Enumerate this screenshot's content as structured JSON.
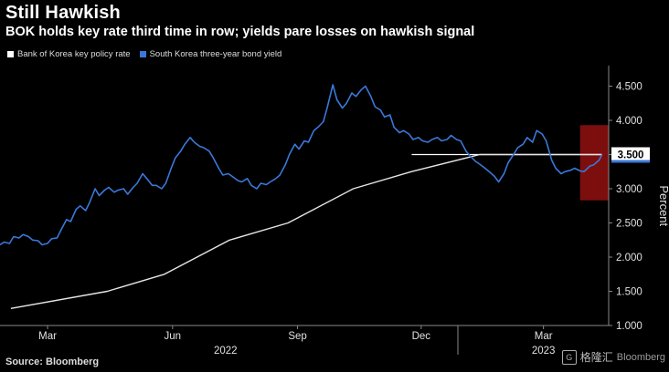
{
  "header": {
    "title": "Still Hawkish",
    "subtitle": "BOK holds key rate third time in row; yields pare losses on hawkish signal"
  },
  "legend": [
    {
      "label": "Bank of Korea key policy rate",
      "color": "#ffffff"
    },
    {
      "label": "South Korea three-year bond yield",
      "color": "#3a78d8"
    }
  ],
  "footer": {
    "source": "Source: Bloomberg",
    "watermark_cn": "格隆汇",
    "watermark_en": "Bloomberg"
  },
  "chart_data": {
    "type": "line",
    "ylabel": "Percent",
    "ylim": [
      1.0,
      4.8
    ],
    "yticks": [
      1.0,
      1.5,
      2.0,
      2.5,
      3.0,
      3.5,
      4.0,
      4.5
    ],
    "ytick_labels": [
      "1.000",
      "1.500",
      "2.000",
      "2.500",
      "3.000",
      "3.500",
      "4.000",
      "4.500"
    ],
    "xlim": [
      "2022-01-25",
      "2023-04-18"
    ],
    "xticks": [
      {
        "date": "2022-03-01",
        "label": "Mar"
      },
      {
        "date": "2022-06-01",
        "label": "Jun"
      },
      {
        "date": "2022-09-01",
        "label": "Sep"
      },
      {
        "date": "2022-12-01",
        "label": "Dec"
      },
      {
        "date": "2023-03-01",
        "label": "Mar"
      }
    ],
    "year_labels": [
      {
        "date": "2022-07-10",
        "label": "2022"
      },
      {
        "date": "2023-03-01",
        "label": "2023"
      }
    ],
    "year_separator": "2022-12-28",
    "current_value_label": "3.500",
    "highlight_box": {
      "x_from": "2023-03-28",
      "x_to": "2023-04-18",
      "y_from": 2.83,
      "y_to": 3.93,
      "color": "#8b0f0f"
    },
    "reference_line": {
      "value": 3.5,
      "x_from": "2022-11-24",
      "x_to": "2023-04-13"
    },
    "series": [
      {
        "name": "Bank of Korea key policy rate",
        "color": "#e6e6e6",
        "points": [
          [
            "2022-02-02",
            1.25
          ],
          [
            "2022-04-14",
            1.5
          ],
          [
            "2022-05-26",
            1.75
          ],
          [
            "2022-07-13",
            2.25
          ],
          [
            "2022-08-25",
            2.5
          ],
          [
            "2022-10-12",
            3.0
          ],
          [
            "2022-11-24",
            3.25
          ],
          [
            "2023-01-13",
            3.5
          ],
          [
            "2023-04-13",
            3.5
          ]
        ]
      },
      {
        "name": "South Korea three-year bond yield",
        "color": "#3a78d8",
        "points": [
          [
            "2022-01-25",
            2.18
          ],
          [
            "2022-01-28",
            2.22
          ],
          [
            "2022-02-01",
            2.2
          ],
          [
            "2022-02-04",
            2.3
          ],
          [
            "2022-02-08",
            2.28
          ],
          [
            "2022-02-11",
            2.33
          ],
          [
            "2022-02-15",
            2.3
          ],
          [
            "2022-02-18",
            2.25
          ],
          [
            "2022-02-22",
            2.24
          ],
          [
            "2022-02-25",
            2.18
          ],
          [
            "2022-03-01",
            2.2
          ],
          [
            "2022-03-04",
            2.27
          ],
          [
            "2022-03-08",
            2.28
          ],
          [
            "2022-03-11",
            2.4
          ],
          [
            "2022-03-15",
            2.55
          ],
          [
            "2022-03-18",
            2.52
          ],
          [
            "2022-03-22",
            2.7
          ],
          [
            "2022-03-25",
            2.75
          ],
          [
            "2022-03-29",
            2.68
          ],
          [
            "2022-04-01",
            2.8
          ],
          [
            "2022-04-05",
            3.0
          ],
          [
            "2022-04-08",
            2.9
          ],
          [
            "2022-04-12",
            2.98
          ],
          [
            "2022-04-15",
            3.02
          ],
          [
            "2022-04-19",
            2.95
          ],
          [
            "2022-04-22",
            2.98
          ],
          [
            "2022-04-26",
            3.0
          ],
          [
            "2022-04-29",
            2.92
          ],
          [
            "2022-05-03",
            3.02
          ],
          [
            "2022-05-06",
            3.08
          ],
          [
            "2022-05-10",
            3.22
          ],
          [
            "2022-05-13",
            3.15
          ],
          [
            "2022-05-17",
            3.05
          ],
          [
            "2022-05-20",
            3.05
          ],
          [
            "2022-05-24",
            3.0
          ],
          [
            "2022-05-27",
            3.08
          ],
          [
            "2022-05-31",
            3.3
          ],
          [
            "2022-06-03",
            3.45
          ],
          [
            "2022-06-07",
            3.55
          ],
          [
            "2022-06-10",
            3.65
          ],
          [
            "2022-06-14",
            3.75
          ],
          [
            "2022-06-17",
            3.68
          ],
          [
            "2022-06-21",
            3.62
          ],
          [
            "2022-06-24",
            3.6
          ],
          [
            "2022-06-28",
            3.55
          ],
          [
            "2022-07-01",
            3.45
          ],
          [
            "2022-07-05",
            3.3
          ],
          [
            "2022-07-08",
            3.2
          ],
          [
            "2022-07-12",
            3.22
          ],
          [
            "2022-07-15",
            3.18
          ],
          [
            "2022-07-19",
            3.12
          ],
          [
            "2022-07-22",
            3.1
          ],
          [
            "2022-07-26",
            3.15
          ],
          [
            "2022-07-29",
            3.05
          ],
          [
            "2022-08-02",
            3.0
          ],
          [
            "2022-08-05",
            3.08
          ],
          [
            "2022-08-09",
            3.06
          ],
          [
            "2022-08-12",
            3.1
          ],
          [
            "2022-08-16",
            3.15
          ],
          [
            "2022-08-19",
            3.2
          ],
          [
            "2022-08-23",
            3.35
          ],
          [
            "2022-08-26",
            3.5
          ],
          [
            "2022-08-30",
            3.65
          ],
          [
            "2022-09-02",
            3.58
          ],
          [
            "2022-09-06",
            3.7
          ],
          [
            "2022-09-09",
            3.68
          ],
          [
            "2022-09-13",
            3.85
          ],
          [
            "2022-09-16",
            3.9
          ],
          [
            "2022-09-20",
            3.98
          ],
          [
            "2022-09-23",
            4.2
          ],
          [
            "2022-09-27",
            4.52
          ],
          [
            "2022-09-30",
            4.3
          ],
          [
            "2022-10-04",
            4.18
          ],
          [
            "2022-10-07",
            4.25
          ],
          [
            "2022-10-11",
            4.4
          ],
          [
            "2022-10-14",
            4.35
          ],
          [
            "2022-10-18",
            4.45
          ],
          [
            "2022-10-21",
            4.5
          ],
          [
            "2022-10-25",
            4.35
          ],
          [
            "2022-10-28",
            4.2
          ],
          [
            "2022-11-01",
            4.15
          ],
          [
            "2022-11-04",
            4.05
          ],
          [
            "2022-11-08",
            4.08
          ],
          [
            "2022-11-11",
            3.9
          ],
          [
            "2022-11-15",
            3.82
          ],
          [
            "2022-11-18",
            3.85
          ],
          [
            "2022-11-22",
            3.8
          ],
          [
            "2022-11-25",
            3.72
          ],
          [
            "2022-11-29",
            3.75
          ],
          [
            "2022-12-02",
            3.7
          ],
          [
            "2022-12-06",
            3.68
          ],
          [
            "2022-12-09",
            3.72
          ],
          [
            "2022-12-13",
            3.75
          ],
          [
            "2022-12-16",
            3.7
          ],
          [
            "2022-12-20",
            3.72
          ],
          [
            "2022-12-23",
            3.78
          ],
          [
            "2022-12-27",
            3.72
          ],
          [
            "2022-12-30",
            3.7
          ],
          [
            "2023-01-03",
            3.55
          ],
          [
            "2023-01-06",
            3.48
          ],
          [
            "2023-01-10",
            3.4
          ],
          [
            "2023-01-13",
            3.36
          ],
          [
            "2023-01-17",
            3.3
          ],
          [
            "2023-01-20",
            3.25
          ],
          [
            "2023-01-24",
            3.18
          ],
          [
            "2023-01-27",
            3.1
          ],
          [
            "2023-01-31",
            3.22
          ],
          [
            "2023-02-03",
            3.38
          ],
          [
            "2023-02-07",
            3.5
          ],
          [
            "2023-02-10",
            3.6
          ],
          [
            "2023-02-14",
            3.65
          ],
          [
            "2023-02-17",
            3.75
          ],
          [
            "2023-02-21",
            3.68
          ],
          [
            "2023-02-24",
            3.85
          ],
          [
            "2023-02-28",
            3.8
          ],
          [
            "2023-03-03",
            3.7
          ],
          [
            "2023-03-07",
            3.42
          ],
          [
            "2023-03-10",
            3.3
          ],
          [
            "2023-03-14",
            3.22
          ],
          [
            "2023-03-17",
            3.25
          ],
          [
            "2023-03-21",
            3.27
          ],
          [
            "2023-03-24",
            3.3
          ],
          [
            "2023-03-28",
            3.26
          ],
          [
            "2023-03-31",
            3.25
          ],
          [
            "2023-04-04",
            3.33
          ],
          [
            "2023-04-07",
            3.35
          ],
          [
            "2023-04-11",
            3.42
          ],
          [
            "2023-04-13",
            3.5
          ]
        ]
      }
    ]
  }
}
